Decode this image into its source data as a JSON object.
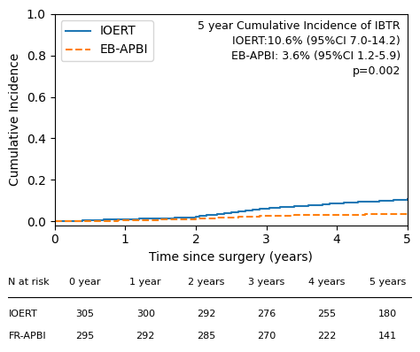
{
  "chart_data": {
    "type": "step",
    "xlabel": "Time since surgery (years)",
    "ylabel": "Cumulative Incidence",
    "xlim": [
      0,
      5
    ],
    "ylim": [
      -0.02,
      1.0
    ],
    "xticks": [
      0,
      1,
      2,
      3,
      4,
      5
    ],
    "yticks": [
      {
        "value": 0,
        "label": "0.0"
      },
      0.2,
      0.4,
      0.6,
      0.8,
      {
        "value": 1,
        "label": "1.0"
      }
    ],
    "legend": "upper left",
    "series": [
      {
        "name": "IOERT",
        "line_style": "solid",
        "x": [
          0.0,
          0.2,
          0.4,
          0.5,
          0.6,
          0.7,
          0.9,
          1.0,
          1.1,
          1.2,
          1.3,
          1.4,
          1.5,
          1.6,
          1.7,
          1.8,
          1.85,
          1.9,
          2.0,
          2.05,
          2.1,
          2.15,
          2.2,
          2.3,
          2.35,
          2.4,
          2.45,
          2.5,
          2.55,
          2.6,
          2.65,
          2.7,
          2.75,
          2.8,
          2.85,
          2.9,
          2.95,
          3.0,
          3.05,
          3.1,
          3.2,
          3.3,
          3.4,
          3.5,
          3.6,
          3.7,
          3.8,
          3.9,
          4.0,
          4.1,
          4.2,
          4.3,
          4.4,
          4.5,
          4.6,
          4.7,
          4.8,
          4.9,
          5.0
        ],
        "values": [
          0.0,
          0.002,
          0.004,
          0.005,
          0.006,
          0.007,
          0.008,
          0.009,
          0.01,
          0.011,
          0.012,
          0.013,
          0.014,
          0.015,
          0.016,
          0.017,
          0.018,
          0.019,
          0.022,
          0.024,
          0.026,
          0.028,
          0.03,
          0.034,
          0.036,
          0.038,
          0.04,
          0.042,
          0.044,
          0.046,
          0.048,
          0.05,
          0.052,
          0.054,
          0.056,
          0.058,
          0.06,
          0.062,
          0.064,
          0.066,
          0.068,
          0.07,
          0.072,
          0.074,
          0.077,
          0.079,
          0.082,
          0.084,
          0.086,
          0.088,
          0.09,
          0.092,
          0.094,
          0.096,
          0.098,
          0.1,
          0.102,
          0.104,
          0.106
        ]
      },
      {
        "name": "EB-APBI",
        "line_style": "dashed",
        "x": [
          0.0,
          0.3,
          0.6,
          0.9,
          1.2,
          1.5,
          1.8,
          2.0,
          2.1,
          2.2,
          2.3,
          2.4,
          2.5,
          2.6,
          2.7,
          2.8,
          2.9,
          3.0,
          3.2,
          3.4,
          3.6,
          3.8,
          4.0,
          4.2,
          4.4,
          4.6,
          4.8,
          5.0
        ],
        "values": [
          0.0,
          0.001,
          0.002,
          0.003,
          0.005,
          0.007,
          0.009,
          0.011,
          0.013,
          0.015,
          0.017,
          0.018,
          0.019,
          0.02,
          0.021,
          0.022,
          0.024,
          0.025,
          0.027,
          0.028,
          0.029,
          0.03,
          0.031,
          0.032,
          0.033,
          0.034,
          0.035,
          0.036
        ]
      }
    ],
    "annotations": [
      "5 year Cumulative Incidence of IBTR",
      "IOERT:10.6% (95%CI 7.0-14.2)",
      "EB-APBI: 3.6% (95%CI 1.2-5.9)",
      "p=0.002"
    ],
    "risk_table": {
      "headers": [
        "N at risk",
        "0 year",
        "1 year",
        "2 years",
        "3 years",
        "4 years",
        "5 years"
      ],
      "rows": [
        [
          "IOERT",
          "305",
          "300",
          "292",
          "276",
          "255",
          "180"
        ],
        [
          "FR-APBI",
          "295",
          "292",
          "285",
          "270",
          "222",
          "141"
        ]
      ]
    }
  }
}
